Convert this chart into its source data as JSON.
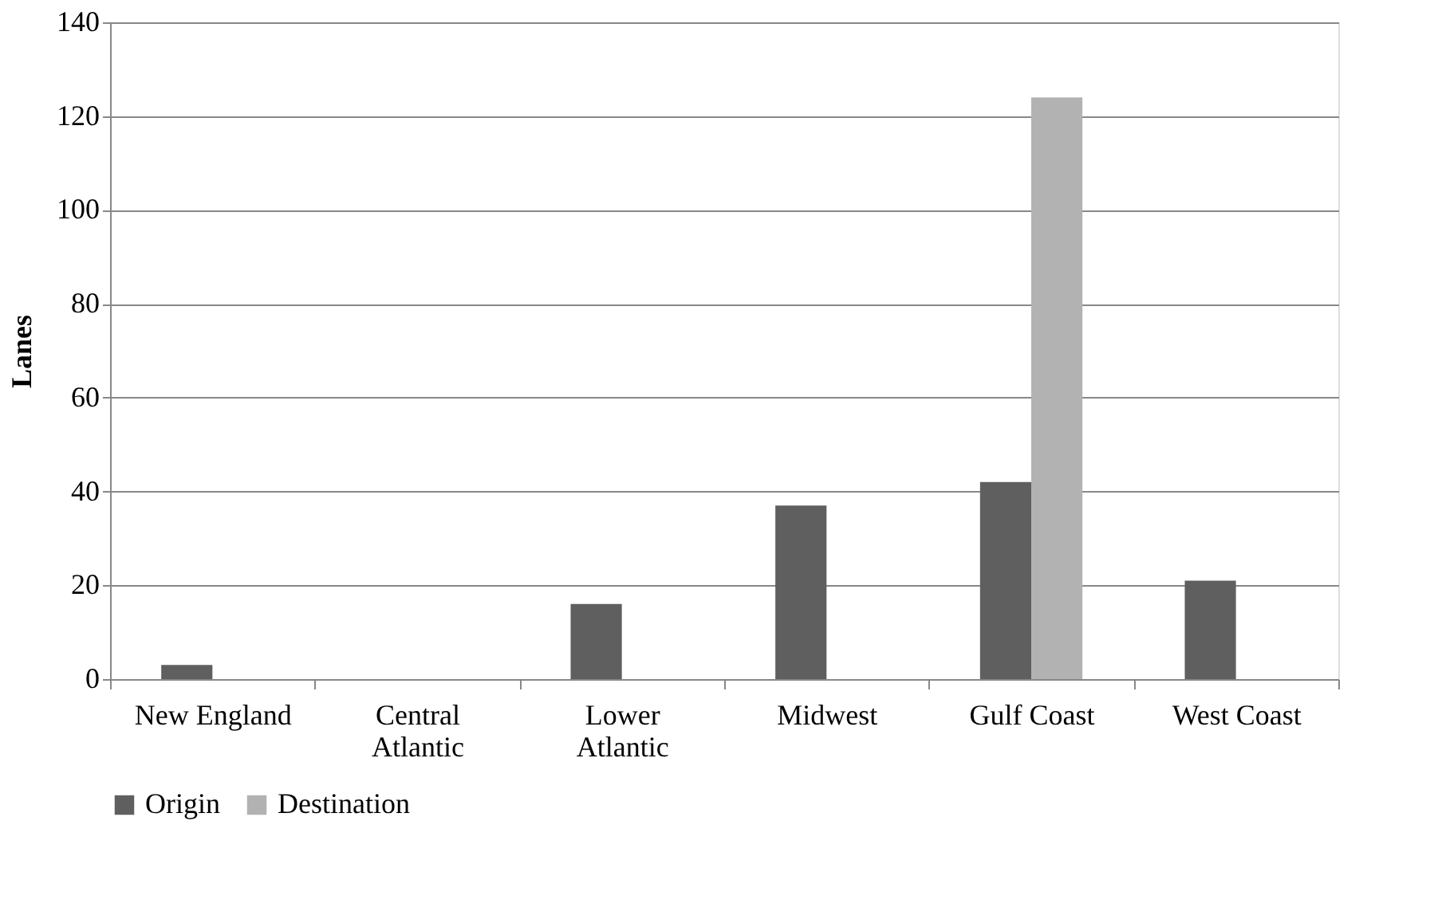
{
  "chart_data": {
    "type": "bar",
    "ylabel": "Lanes",
    "categories": [
      "New England",
      "Central Atlantic",
      "Lower Atlantic",
      "Midwest",
      "Gulf Coast",
      "West Coast"
    ],
    "series": [
      {
        "name": "Origin",
        "color": "#5f5f5f",
        "values": [
          3,
          0,
          16,
          37,
          42,
          21
        ]
      },
      {
        "name": "Destination",
        "color": "#b2b2b2",
        "values": [
          0,
          0,
          0,
          0,
          124,
          0
        ]
      }
    ],
    "ylim": [
      0,
      140
    ],
    "yticks": [
      0,
      20,
      40,
      60,
      80,
      100,
      120,
      140
    ],
    "grid": "y",
    "legend": "bottom"
  }
}
